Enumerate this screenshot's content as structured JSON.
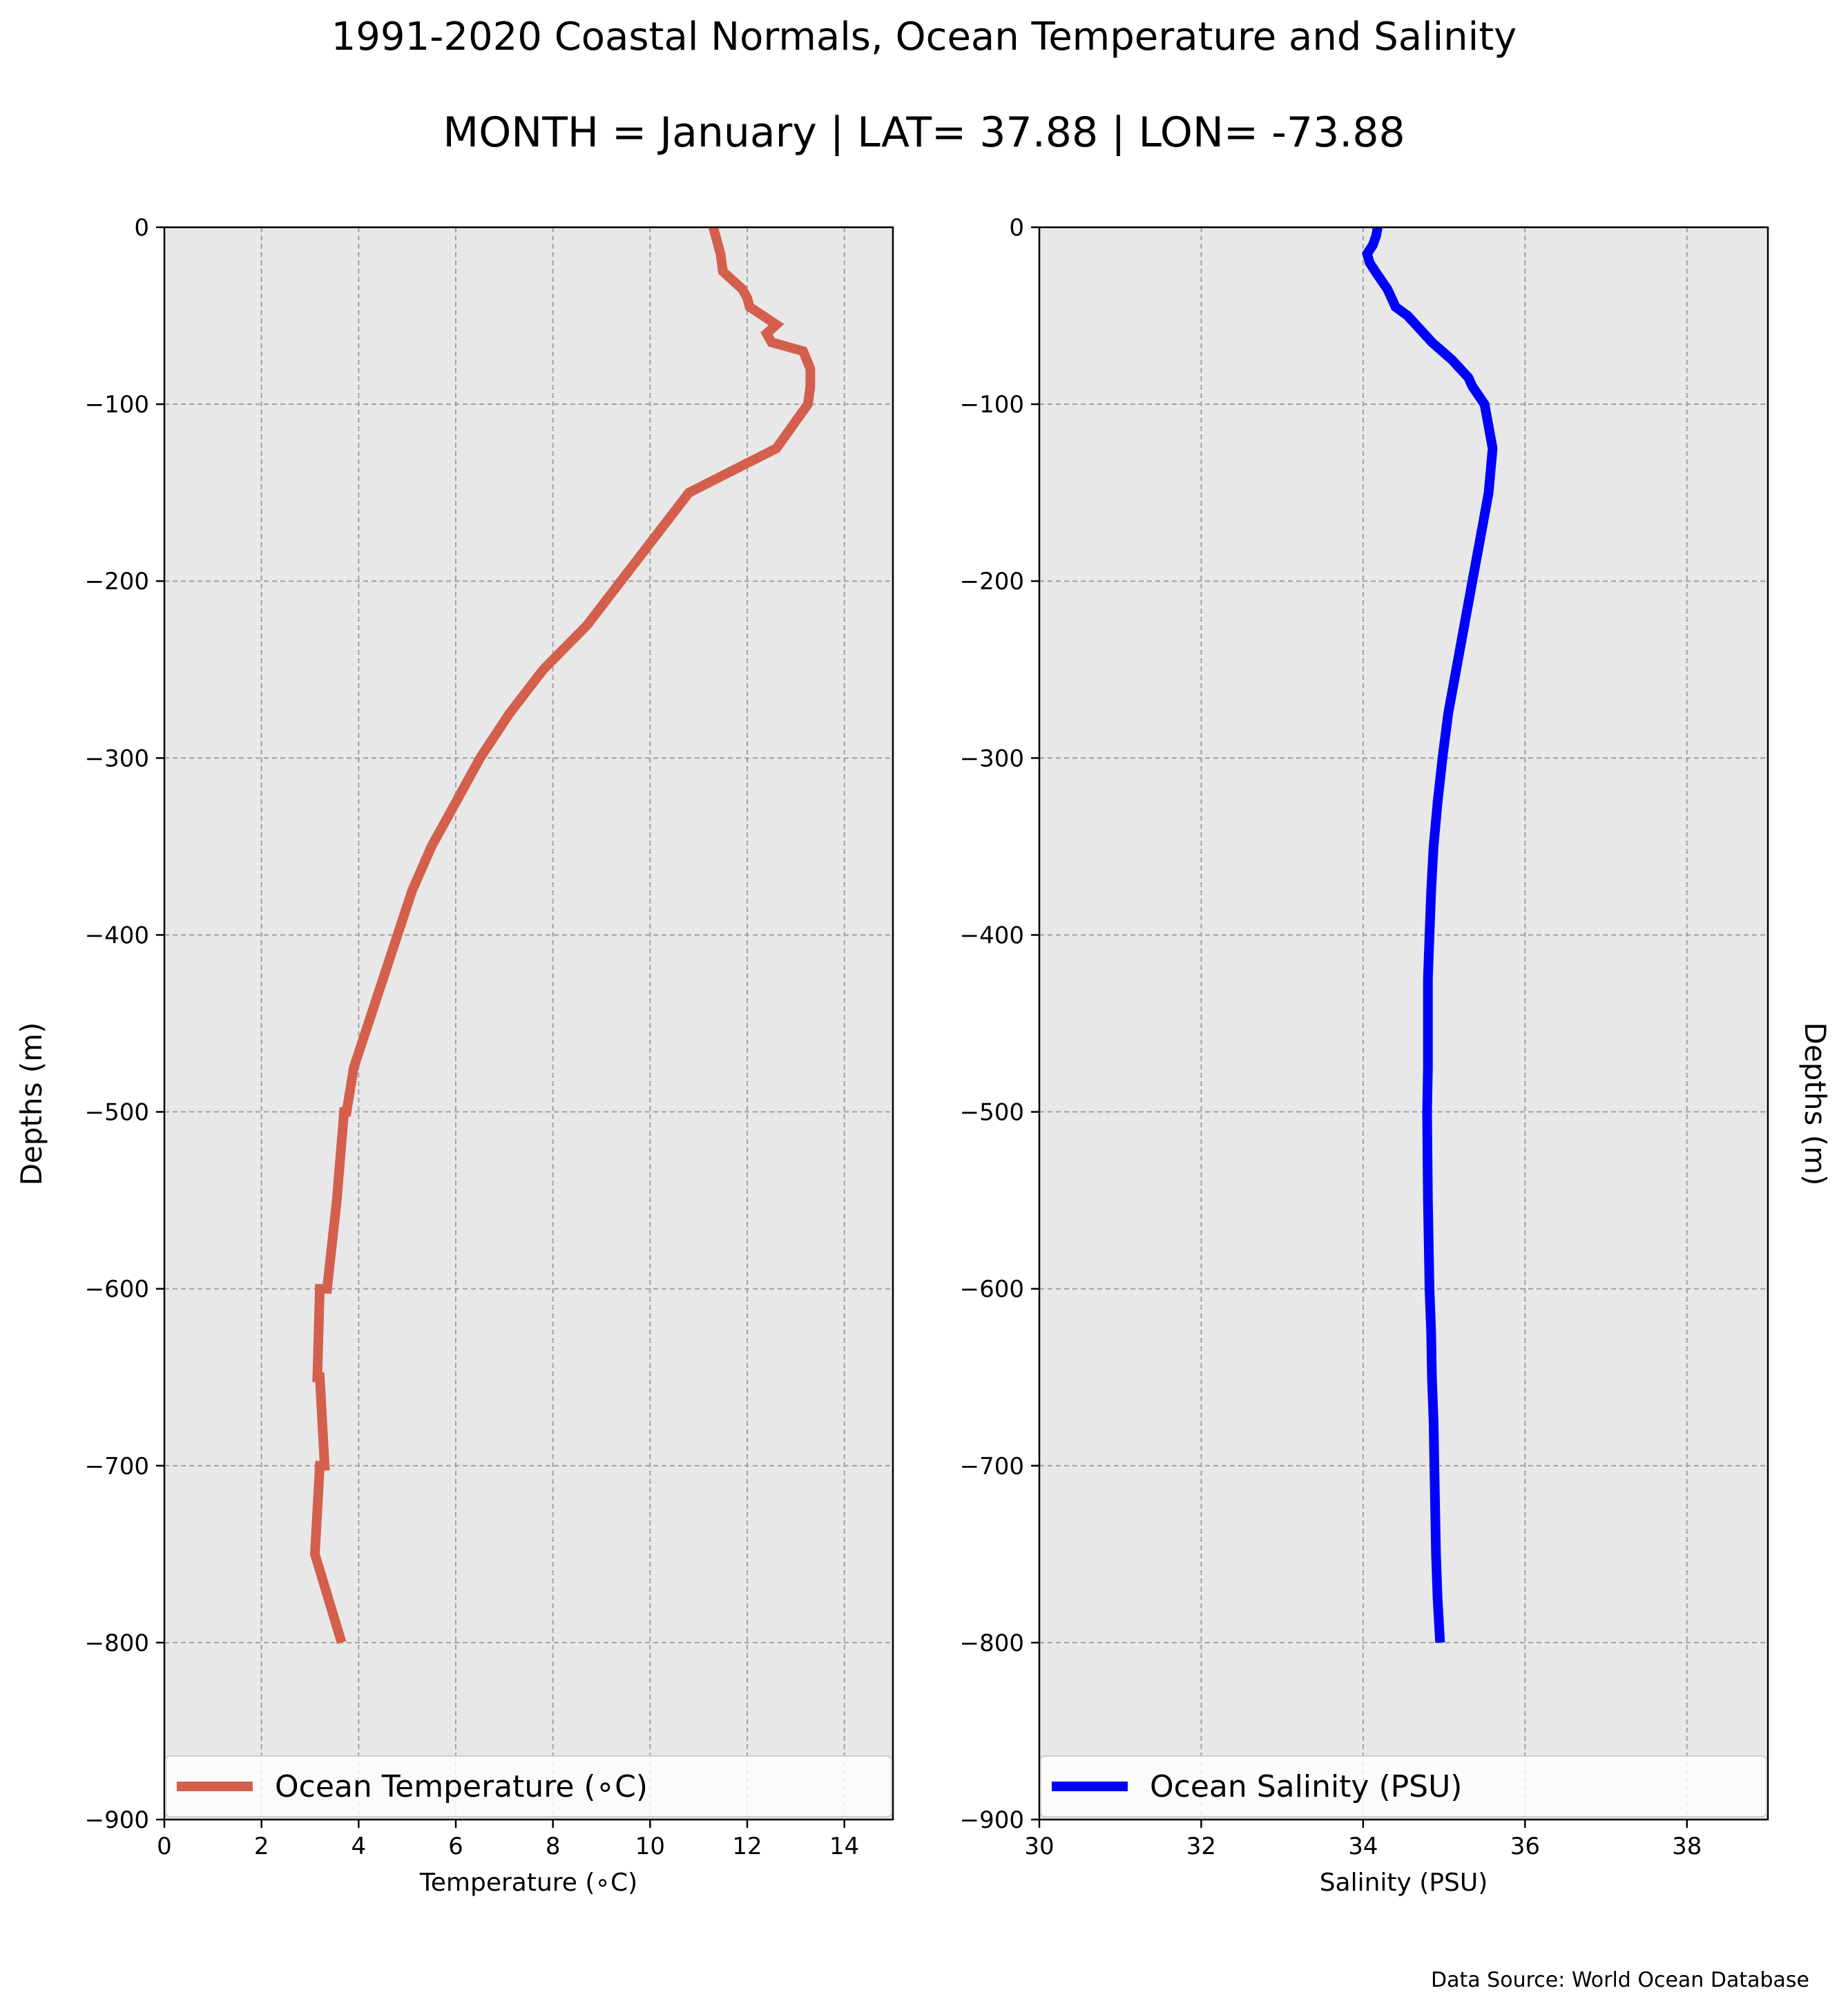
{
  "figure": {
    "title": "1991-2020 Coastal Normals, Ocean Temperature and Salinity",
    "subtitle": "MONTH = January | LAT= 37.88 | LON= -73.88",
    "source_note": "Data Source: World Ocean Database",
    "background_color": "#e8e8e8",
    "grid_color": "#a0a0a0"
  },
  "chart_data": [
    {
      "type": "line",
      "orientation": "depth-profile",
      "xlabel": "Temperature (∘C)",
      "ylabel": "Depths (m)",
      "xlim": [
        0,
        15
      ],
      "ylim": [
        -900,
        0
      ],
      "xticks": [
        0,
        2,
        4,
        6,
        8,
        10,
        12,
        14
      ],
      "yticks": [
        0,
        -100,
        -200,
        -300,
        -400,
        -500,
        -600,
        -700,
        -800,
        -900
      ],
      "grid": true,
      "legend_position": "bottom",
      "series": [
        {
          "name": "Ocean Temperature (∘C)",
          "color": "#d45f4d",
          "x": [
            11.3,
            11.35,
            11.4,
            11.45,
            11.5,
            11.9,
            12.0,
            12.05,
            12.6,
            12.4,
            12.5,
            13.15,
            13.3,
            13.3,
            13.25,
            12.6,
            10.8,
            10.1,
            9.4,
            8.7,
            7.8,
            7.1,
            6.5,
            6.0,
            5.5,
            5.1,
            4.8,
            4.5,
            4.2,
            3.9,
            3.75,
            3.7,
            3.55,
            3.35,
            3.2,
            3.15,
            3.2,
            3.3,
            3.2,
            3.1,
            3.65
          ],
          "y": [
            0,
            -5,
            -10,
            -15,
            -25,
            -35,
            -40,
            -45,
            -55,
            -60,
            -65,
            -70,
            -80,
            -90,
            -100,
            -125,
            -150,
            -175,
            -200,
            -225,
            -250,
            -275,
            -300,
            -325,
            -350,
            -375,
            -400,
            -425,
            -450,
            -475,
            -500,
            -500,
            -550,
            -600,
            -600,
            -650,
            -650,
            -700,
            -700,
            -750,
            -800
          ]
        }
      ]
    },
    {
      "type": "line",
      "orientation": "depth-profile",
      "xlabel": "Salinity (PSU)",
      "ylabel": "Depths (m)",
      "xlim": [
        30,
        39
      ],
      "ylim": [
        -900,
        0
      ],
      "xticks": [
        30,
        32,
        34,
        36,
        38
      ],
      "yticks": [
        0,
        -100,
        -200,
        -300,
        -400,
        -500,
        -600,
        -700,
        -800,
        -900
      ],
      "grid": true,
      "legend_position": "bottom",
      "series": [
        {
          "name": "Ocean Salinity (PSU)",
          "color": "#0000ff",
          "x": [
            34.18,
            34.16,
            34.12,
            34.05,
            34.08,
            34.15,
            34.3,
            34.4,
            34.55,
            34.65,
            34.85,
            35.1,
            35.3,
            35.35,
            35.5,
            35.6,
            35.55,
            35.45,
            35.35,
            35.25,
            35.15,
            35.05,
            34.98,
            34.92,
            34.87,
            34.84,
            34.82,
            34.8,
            34.8,
            34.8,
            34.79,
            34.8,
            34.82,
            34.84,
            34.85,
            34.87,
            34.88,
            34.89,
            34.9,
            34.92,
            34.95
          ],
          "y": [
            0,
            -5,
            -10,
            -15,
            -20,
            -25,
            -35,
            -45,
            -50,
            -55,
            -65,
            -75,
            -85,
            -90,
            -100,
            -125,
            -150,
            -175,
            -200,
            -225,
            -250,
            -275,
            -300,
            -325,
            -350,
            -375,
            -400,
            -425,
            -450,
            -475,
            -500,
            -550,
            -600,
            -625,
            -650,
            -675,
            -700,
            -725,
            -750,
            -775,
            -800
          ]
        }
      ]
    }
  ]
}
